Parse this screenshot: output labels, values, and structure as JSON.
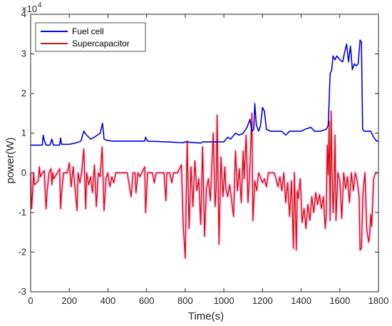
{
  "chart_data": {
    "type": "line",
    "title": "",
    "xlabel": "Time(s)",
    "ylabel": "power(W)",
    "y_exponent_label": "×10",
    "y_exponent_power": "4",
    "xlim": [
      0,
      1800
    ],
    "ylim": [
      -30000,
      40000
    ],
    "x_ticks": [
      0,
      200,
      400,
      600,
      800,
      1000,
      1200,
      1400,
      1600,
      1800
    ],
    "y_ticks": [
      -30000,
      -20000,
      -10000,
      0,
      10000,
      20000,
      30000,
      40000
    ],
    "x_tick_labels": [
      "0",
      "200",
      "400",
      "600",
      "800",
      "1000",
      "1200",
      "1400",
      "1600",
      "1800"
    ],
    "y_tick_labels": [
      "-3",
      "-2",
      "-1",
      "0",
      "1",
      "2",
      "3",
      "4"
    ],
    "grid": false,
    "legend_position": "top-left",
    "series": [
      {
        "name": "Fuel cell",
        "color": "#0000e0",
        "points": [
          [
            0,
            7000
          ],
          [
            60,
            7000
          ],
          [
            65,
            9500
          ],
          [
            72,
            8000
          ],
          [
            80,
            7000
          ],
          [
            100,
            7000
          ],
          [
            110,
            8500
          ],
          [
            118,
            7000
          ],
          [
            150,
            7000
          ],
          [
            155,
            8800
          ],
          [
            160,
            7200
          ],
          [
            200,
            7200
          ],
          [
            230,
            7500
          ],
          [
            260,
            8000
          ],
          [
            275,
            10500
          ],
          [
            290,
            9500
          ],
          [
            310,
            8500
          ],
          [
            330,
            9000
          ],
          [
            345,
            9500
          ],
          [
            360,
            10000
          ],
          [
            372,
            12500
          ],
          [
            380,
            8500
          ],
          [
            395,
            8200
          ],
          [
            420,
            8000
          ],
          [
            590,
            8000
          ],
          [
            595,
            9000
          ],
          [
            605,
            8000
          ],
          [
            700,
            7800
          ],
          [
            790,
            7600
          ],
          [
            800,
            7800
          ],
          [
            880,
            7500
          ],
          [
            890,
            7800
          ],
          [
            1000,
            7800
          ],
          [
            1020,
            9000
          ],
          [
            1035,
            8500
          ],
          [
            1060,
            10000
          ],
          [
            1080,
            9500
          ],
          [
            1100,
            10000
          ],
          [
            1120,
            11500
          ],
          [
            1135,
            13500
          ],
          [
            1145,
            10500
          ],
          [
            1155,
            11000
          ],
          [
            1160,
            17500
          ],
          [
            1168,
            12000
          ],
          [
            1180,
            10500
          ],
          [
            1190,
            12000
          ],
          [
            1200,
            16500
          ],
          [
            1210,
            15500
          ],
          [
            1220,
            11000
          ],
          [
            1240,
            10500
          ],
          [
            1300,
            10500
          ],
          [
            1320,
            9500
          ],
          [
            1340,
            10500
          ],
          [
            1400,
            10500
          ],
          [
            1420,
            11000
          ],
          [
            1450,
            11500
          ],
          [
            1470,
            10500
          ],
          [
            1500,
            10500
          ],
          [
            1530,
            11000
          ],
          [
            1540,
            12000
          ],
          [
            1550,
            25000
          ],
          [
            1558,
            26000
          ],
          [
            1565,
            29500
          ],
          [
            1575,
            28500
          ],
          [
            1585,
            29500
          ],
          [
            1600,
            28500
          ],
          [
            1615,
            28000
          ],
          [
            1625,
            30500
          ],
          [
            1635,
            32500
          ],
          [
            1645,
            28000
          ],
          [
            1655,
            32000
          ],
          [
            1665,
            26000
          ],
          [
            1675,
            27500
          ],
          [
            1685,
            27000
          ],
          [
            1695,
            27500
          ],
          [
            1705,
            33500
          ],
          [
            1712,
            33000
          ],
          [
            1718,
            11000
          ],
          [
            1725,
            10500
          ],
          [
            1760,
            10500
          ],
          [
            1775,
            9000
          ],
          [
            1790,
            8000
          ],
          [
            1800,
            8000
          ]
        ]
      },
      {
        "name": "Supercapacitor",
        "color": "#e00000",
        "points": [
          [
            0,
            0
          ],
          [
            5,
            -9000
          ],
          [
            10,
            -5000
          ],
          [
            15,
            0
          ],
          [
            20,
            -3000
          ],
          [
            40,
            -2000
          ],
          [
            45,
            1500
          ],
          [
            50,
            -1000
          ],
          [
            60,
            0
          ],
          [
            70,
            500
          ],
          [
            80,
            -9000
          ],
          [
            85,
            -5000
          ],
          [
            95,
            0
          ],
          [
            105,
            1000
          ],
          [
            110,
            -3000
          ],
          [
            115,
            0
          ],
          [
            120,
            -1500
          ],
          [
            150,
            1000
          ],
          [
            155,
            -9000
          ],
          [
            160,
            -5000
          ],
          [
            170,
            0
          ],
          [
            190,
            0
          ],
          [
            200,
            2500
          ],
          [
            210,
            -3500
          ],
          [
            220,
            1500
          ],
          [
            230,
            -4000
          ],
          [
            240,
            -9500
          ],
          [
            245,
            0
          ],
          [
            255,
            -2500
          ],
          [
            265,
            500
          ],
          [
            275,
            6000
          ],
          [
            285,
            -9000
          ],
          [
            290,
            0
          ],
          [
            300,
            -3000
          ],
          [
            310,
            -1000
          ],
          [
            320,
            -5000
          ],
          [
            330,
            2000
          ],
          [
            340,
            -8500
          ],
          [
            350,
            0
          ],
          [
            360,
            -1000
          ],
          [
            370,
            6500
          ],
          [
            380,
            -9500
          ],
          [
            390,
            -1500
          ],
          [
            400,
            0
          ],
          [
            410,
            -3500
          ],
          [
            420,
            -1000
          ],
          [
            430,
            -2500
          ],
          [
            440,
            0
          ],
          [
            500,
            0
          ],
          [
            520,
            -6000
          ],
          [
            530,
            0
          ],
          [
            540,
            0
          ],
          [
            545,
            -5000
          ],
          [
            555,
            0
          ],
          [
            565,
            -1000
          ],
          [
            575,
            0
          ],
          [
            590,
            1500
          ],
          [
            595,
            -10000
          ],
          [
            605,
            0
          ],
          [
            630,
            0
          ],
          [
            640,
            -2500
          ],
          [
            650,
            0
          ],
          [
            690,
            0
          ],
          [
            700,
            -7000
          ],
          [
            705,
            0
          ],
          [
            720,
            0
          ],
          [
            730,
            -2500
          ],
          [
            740,
            0
          ],
          [
            760,
            0
          ],
          [
            780,
            2000
          ],
          [
            790,
            -13500
          ],
          [
            800,
            -21500
          ],
          [
            810,
            8000
          ],
          [
            820,
            -14000
          ],
          [
            830,
            1500
          ],
          [
            840,
            -8500
          ],
          [
            850,
            3000
          ],
          [
            860,
            -4500
          ],
          [
            870,
            -1500
          ],
          [
            880,
            -13000
          ],
          [
            890,
            6500
          ],
          [
            900,
            -16000
          ],
          [
            910,
            -4000
          ],
          [
            920,
            -1500
          ],
          [
            930,
            -7000
          ],
          [
            945,
            10000
          ],
          [
            955,
            -8500
          ],
          [
            960,
            -4000
          ],
          [
            965,
            14500
          ],
          [
            975,
            -18000
          ],
          [
            985,
            4000
          ],
          [
            995,
            -6000
          ],
          [
            1005,
            1500
          ],
          [
            1010,
            -4000
          ],
          [
            1020,
            -6000
          ],
          [
            1030,
            -3000
          ],
          [
            1040,
            -7000
          ],
          [
            1050,
            -11000
          ],
          [
            1060,
            5500
          ],
          [
            1070,
            -4500
          ],
          [
            1080,
            1000
          ],
          [
            1090,
            -7500
          ],
          [
            1100,
            5500
          ],
          [
            1105,
            -1500
          ],
          [
            1115,
            9500
          ],
          [
            1125,
            -7500
          ],
          [
            1135,
            1500
          ],
          [
            1145,
            15000
          ],
          [
            1150,
            -12000
          ],
          [
            1160,
            -2000
          ],
          [
            1170,
            -4500
          ],
          [
            1180,
            0
          ],
          [
            1200,
            -2500
          ],
          [
            1210,
            -1500
          ],
          [
            1220,
            -3500
          ],
          [
            1230,
            0
          ],
          [
            1260,
            0
          ],
          [
            1270,
            -1500
          ],
          [
            1280,
            -3500
          ],
          [
            1290,
            -1000
          ],
          [
            1300,
            -4500
          ],
          [
            1310,
            0
          ],
          [
            1320,
            -7500
          ],
          [
            1330,
            -2500
          ],
          [
            1340,
            -11000
          ],
          [
            1350,
            -2000
          ],
          [
            1360,
            -19000
          ],
          [
            1365,
            0
          ],
          [
            1375,
            -19500
          ],
          [
            1380,
            -4500
          ],
          [
            1385,
            -6500
          ],
          [
            1395,
            -1500
          ],
          [
            1405,
            -12500
          ],
          [
            1415,
            -9000
          ],
          [
            1425,
            -14000
          ],
          [
            1435,
            -8000
          ],
          [
            1445,
            -12000
          ],
          [
            1455,
            -6000
          ],
          [
            1465,
            -10000
          ],
          [
            1475,
            -5000
          ],
          [
            1485,
            -8000
          ],
          [
            1495,
            -5500
          ],
          [
            1505,
            -9000
          ],
          [
            1515,
            -6000
          ],
          [
            1525,
            -14000
          ],
          [
            1530,
            -10000
          ],
          [
            1535,
            7000
          ],
          [
            1540,
            -500
          ],
          [
            1545,
            13000
          ],
          [
            1550,
            -12000
          ],
          [
            1555,
            15500
          ],
          [
            1560,
            500
          ],
          [
            1565,
            -10000
          ],
          [
            1570,
            -4500
          ],
          [
            1575,
            9500
          ],
          [
            1580,
            -12000
          ],
          [
            1590,
            0
          ],
          [
            1600,
            -2000
          ],
          [
            1610,
            -11500
          ],
          [
            1620,
            0
          ],
          [
            1630,
            -4000
          ],
          [
            1640,
            -1000
          ],
          [
            1650,
            -7500
          ],
          [
            1660,
            0
          ],
          [
            1670,
            -4500
          ],
          [
            1680,
            0
          ],
          [
            1690,
            -2000
          ],
          [
            1700,
            -6000
          ],
          [
            1705,
            -19500
          ],
          [
            1712,
            -19000
          ],
          [
            1720,
            -5000
          ],
          [
            1730,
            0
          ],
          [
            1740,
            -14500
          ],
          [
            1750,
            -17500
          ],
          [
            1755,
            -15500
          ],
          [
            1760,
            -10500
          ],
          [
            1765,
            -13500
          ],
          [
            1775,
            -1500
          ],
          [
            1785,
            0
          ],
          [
            1800,
            0
          ]
        ]
      }
    ]
  }
}
